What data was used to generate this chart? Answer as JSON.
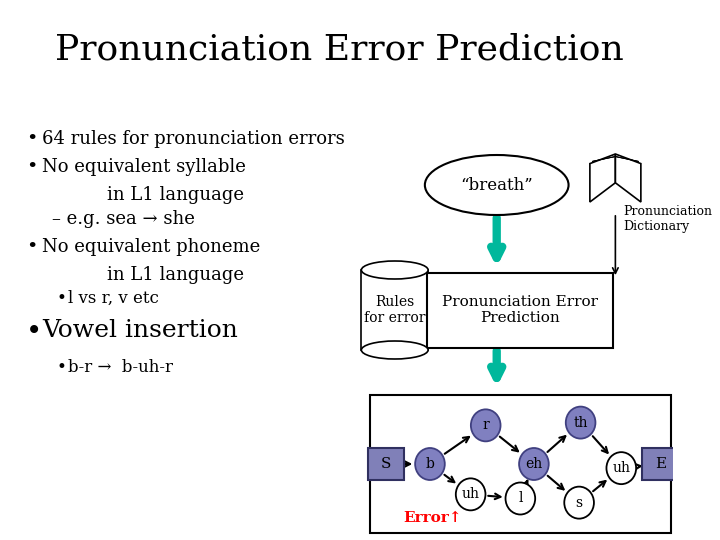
{
  "title": "Pronunciation Error Prediction",
  "title_fontsize": 26,
  "background_color": "#ffffff",
  "slide_bg": "#ffffff",
  "bullet_items": [
    {
      "text": "64 rules for pronunciation errors",
      "level": 0,
      "size": 13,
      "extra_before": 0
    },
    {
      "text": "No equivalent syllable",
      "level": 0,
      "size": 13,
      "extra_before": 0
    },
    {
      "text": "in L1 language",
      "level": 0,
      "size": 13,
      "extra_before": 0,
      "indent_only": true
    },
    {
      "text": "– e.g. sea → she",
      "level": 1,
      "size": 13,
      "extra_before": 0
    },
    {
      "text": "No equivalent phoneme",
      "level": 0,
      "size": 13,
      "extra_before": 0
    },
    {
      "text": "in L1 language",
      "level": 0,
      "size": 13,
      "extra_before": 0,
      "indent_only": true
    },
    {
      "text": "l vs r, v etc",
      "level": 2,
      "size": 12,
      "extra_before": 0
    },
    {
      "text": "Vowel insertion",
      "level": 0,
      "size": 18,
      "extra_before": 0.01
    },
    {
      "text": "b-r →  b-uh-r",
      "level": 2,
      "size": 12,
      "extra_before": 0
    }
  ],
  "teal_color": "#00b89c",
  "node_color_dark": "#8080c0",
  "node_color_light": "#ffffff",
  "node_border": "#404080",
  "box_node_color": "#8080b8"
}
